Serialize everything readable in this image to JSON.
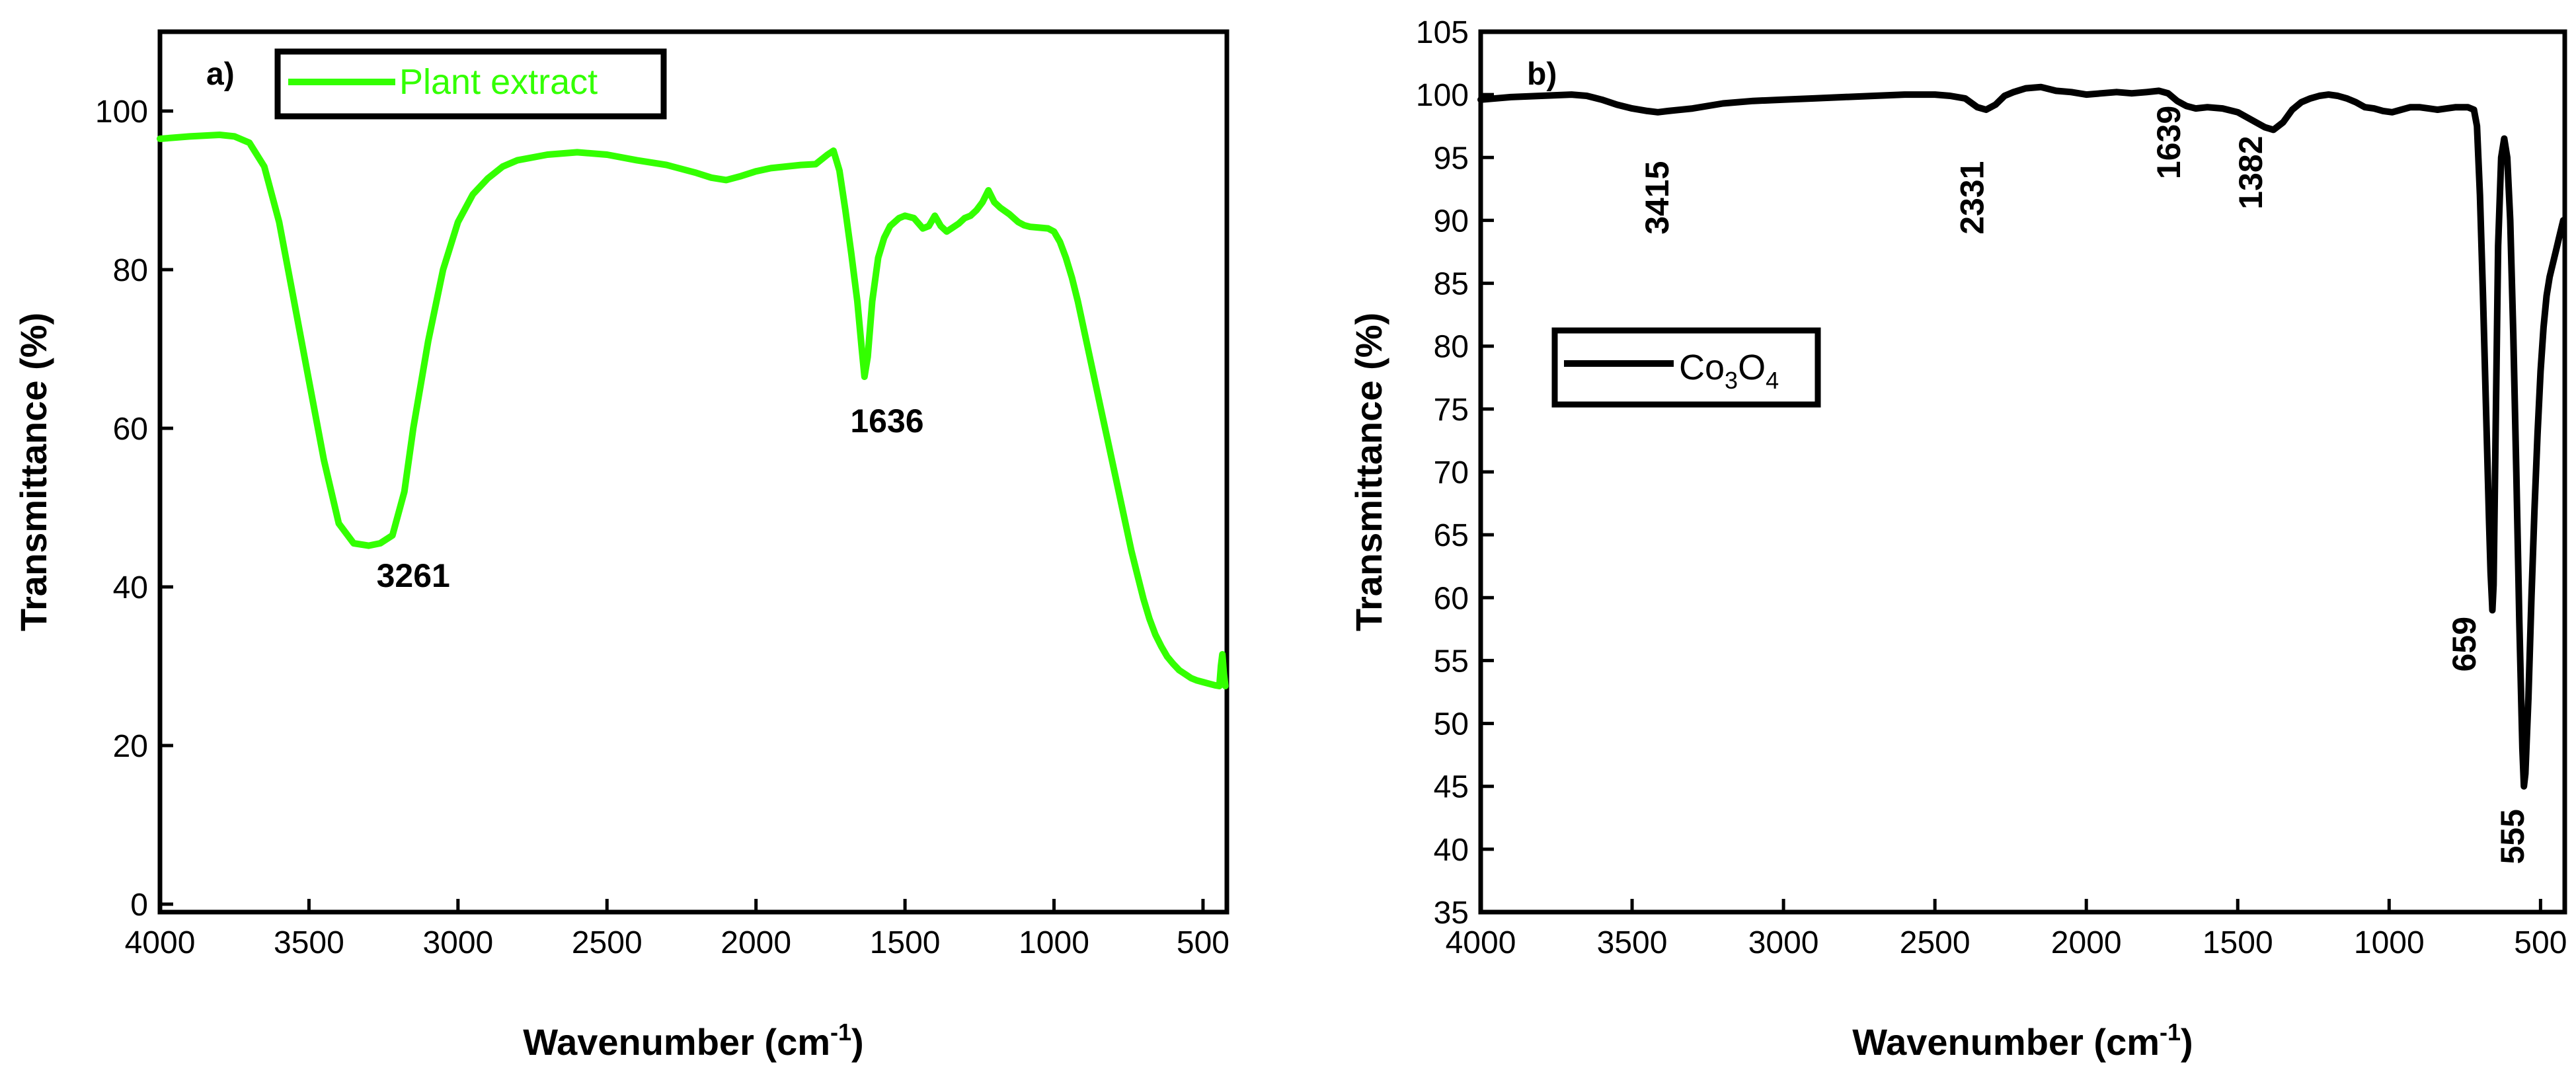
{
  "chart_data": [
    {
      "type": "line",
      "panel_label": "a)",
      "xlabel": "Wavenumber (cm",
      "xlabel_sup": "-1",
      "xlabel_close": ")",
      "ylabel": "Transmittance (%)",
      "xlim": [
        4000,
        420
      ],
      "ylim": [
        -1,
        110
      ],
      "x_ticks": [
        4000,
        3500,
        3000,
        2500,
        2000,
        1500,
        1000,
        500
      ],
      "y_ticks": [
        0,
        20,
        40,
        60,
        80,
        100
      ],
      "legend": {
        "label": "Plant extract",
        "placement": "top-left"
      },
      "color": "#33ff00",
      "series": [
        {
          "name": "Plant extract",
          "x": [
            4000,
            3900,
            3800,
            3750,
            3700,
            3650,
            3600,
            3550,
            3500,
            3450,
            3400,
            3350,
            3300,
            3261,
            3220,
            3180,
            3150,
            3100,
            3050,
            3000,
            2950,
            2900,
            2850,
            2800,
            2700,
            2600,
            2500,
            2400,
            2300,
            2200,
            2150,
            2100,
            2050,
            2000,
            1950,
            1900,
            1850,
            1800,
            1760,
            1740,
            1720,
            1700,
            1680,
            1660,
            1645,
            1636,
            1625,
            1610,
            1590,
            1570,
            1550,
            1520,
            1500,
            1470,
            1440,
            1420,
            1400,
            1380,
            1360,
            1340,
            1320,
            1300,
            1280,
            1260,
            1240,
            1220,
            1200,
            1180,
            1150,
            1120,
            1100,
            1080,
            1050,
            1020,
            1000,
            980,
            960,
            940,
            920,
            900,
            880,
            860,
            840,
            820,
            800,
            780,
            760,
            740,
            720,
            700,
            680,
            660,
            640,
            620,
            600,
            580,
            560,
            540,
            520,
            500,
            480,
            460,
            445,
            440,
            435,
            430,
            425
          ],
          "y": [
            96.5,
            96.8,
            97,
            96.8,
            96,
            93,
            86,
            76,
            66,
            56,
            48,
            45.5,
            45.2,
            45.5,
            46.5,
            52,
            60,
            71,
            80,
            86,
            89.5,
            91.5,
            93,
            93.8,
            94.5,
            94.8,
            94.5,
            93.8,
            93.2,
            92.2,
            91.6,
            91.3,
            91.8,
            92.4,
            92.8,
            93,
            93.2,
            93.3,
            94.5,
            95,
            92.5,
            87.5,
            82,
            76,
            70,
            66.5,
            69,
            76,
            81.5,
            84,
            85.5,
            86.5,
            86.8,
            86.5,
            85.2,
            85.5,
            86.8,
            85.5,
            84.8,
            85.3,
            85.8,
            86.5,
            86.8,
            87.5,
            88.5,
            90,
            88.5,
            87.8,
            87,
            86,
            85.6,
            85.4,
            85.3,
            85.2,
            84.8,
            83.5,
            81.5,
            79,
            76,
            72.5,
            69,
            65.5,
            62,
            58.5,
            55,
            51.5,
            48,
            44.5,
            41.5,
            38.5,
            36,
            34,
            32.5,
            31.2,
            30.3,
            29.5,
            29,
            28.5,
            28.2,
            28,
            27.8,
            27.6,
            27.5,
            30,
            31.5,
            29,
            27.5
          ]
        }
      ],
      "annotations": [
        {
          "text": "3261",
          "x": 3150,
          "y": 40
        },
        {
          "text": "1636",
          "x": 1560,
          "y": 59.5
        }
      ]
    },
    {
      "type": "line",
      "panel_label": "b)",
      "xlabel": "Wavenumber (cm",
      "xlabel_sup": "-1",
      "xlabel_close": ")",
      "ylabel": "Transmittance (%)",
      "xlim": [
        4000,
        420
      ],
      "ylim": [
        35,
        105
      ],
      "x_ticks": [
        4000,
        3500,
        3000,
        2500,
        2000,
        1500,
        1000,
        500
      ],
      "y_ticks": [
        35,
        40,
        45,
        50,
        55,
        60,
        65,
        70,
        75,
        80,
        85,
        90,
        95,
        100,
        105
      ],
      "legend": {
        "label_main": "Co",
        "label_sub1": "3",
        "label_mid": "O",
        "label_sub2": "4",
        "placement": "center-left"
      },
      "color": "#000000",
      "series": [
        {
          "name": "Co3O4",
          "x": [
            4000,
            3900,
            3800,
            3700,
            3650,
            3600,
            3550,
            3500,
            3450,
            3415,
            3380,
            3300,
            3200,
            3100,
            3000,
            2900,
            2800,
            2700,
            2600,
            2500,
            2450,
            2400,
            2360,
            2331,
            2300,
            2270,
            2240,
            2200,
            2150,
            2100,
            2050,
            2000,
            1950,
            1900,
            1850,
            1800,
            1760,
            1730,
            1700,
            1670,
            1639,
            1600,
            1550,
            1500,
            1470,
            1440,
            1410,
            1382,
            1350,
            1320,
            1290,
            1260,
            1230,
            1200,
            1170,
            1140,
            1110,
            1080,
            1050,
            1020,
            990,
            960,
            930,
            900,
            870,
            840,
            810,
            780,
            760,
            740,
            720,
            710,
            700,
            690,
            680,
            670,
            665,
            660,
            659,
            655,
            650,
            640,
            630,
            620,
            610,
            600,
            590,
            580,
            570,
            560,
            555,
            550,
            540,
            530,
            520,
            510,
            500,
            490,
            480,
            470,
            460,
            450,
            440,
            430,
            425
          ],
          "y": [
            99.6,
            99.8,
            99.9,
            100,
            99.9,
            99.6,
            99.2,
            98.9,
            98.7,
            98.6,
            98.7,
            98.9,
            99.3,
            99.5,
            99.6,
            99.7,
            99.8,
            99.9,
            100,
            100,
            99.9,
            99.7,
            99,
            98.8,
            99.2,
            99.9,
            100.2,
            100.5,
            100.6,
            100.3,
            100.2,
            100,
            100.1,
            100.2,
            100.1,
            100.2,
            100.3,
            100.1,
            99.5,
            99.1,
            98.9,
            99,
            98.9,
            98.6,
            98.2,
            97.8,
            97.4,
            97.2,
            97.8,
            98.8,
            99.4,
            99.7,
            99.9,
            100,
            99.9,
            99.7,
            99.4,
            99,
            98.9,
            98.7,
            98.6,
            98.8,
            99,
            99,
            98.9,
            98.8,
            98.9,
            99,
            99,
            99,
            98.8,
            97.5,
            92,
            84,
            75,
            66,
            62,
            59.5,
            59,
            61,
            70,
            88,
            95,
            96.5,
            95,
            90,
            81,
            70,
            58,
            48,
            45,
            46,
            52,
            60,
            67,
            73,
            78,
            81.5,
            84,
            85.5,
            86.5,
            87.5,
            88.5,
            89.5,
            90
          ]
        }
      ],
      "annotations": [
        {
          "text": "3415",
          "x": 3380,
          "y": 91.8,
          "rotate": -90
        },
        {
          "text": "2331",
          "x": 2340,
          "y": 91.8,
          "rotate": -90
        },
        {
          "text": "1639",
          "x": 1690,
          "y": 96.2,
          "rotate": -90
        },
        {
          "text": "1382",
          "x": 1420,
          "y": 93.8,
          "rotate": -90
        },
        {
          "text": "659",
          "x": 715,
          "y": 56.3,
          "rotate": -90
        },
        {
          "text": "555",
          "x": 555,
          "y": 41,
          "rotate": -90
        }
      ]
    }
  ]
}
